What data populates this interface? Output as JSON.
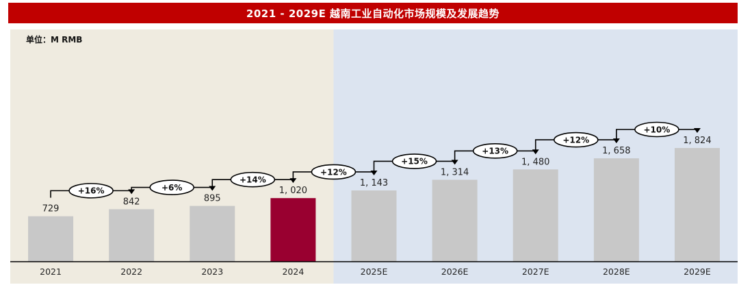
{
  "chart_data": {
    "type": "bar",
    "title": "2021 - 2029E 越南工业自动化市场规模及发展趋势",
    "unit": "单位：M RMB",
    "categories": [
      "2021",
      "2022",
      "2023",
      "2024",
      "2025E",
      "2026E",
      "2027E",
      "2028E",
      "2029E"
    ],
    "values": [
      729,
      842,
      895,
      1020,
      1143,
      1314,
      1480,
      1658,
      1824
    ],
    "value_labels": [
      "729",
      "842",
      "895",
      "1, 020",
      "1, 143",
      "1, 314",
      "1, 480",
      "1, 658",
      "1, 824"
    ],
    "growth_labels": [
      "+16%",
      "+6%",
      "+14%",
      "+12%",
      "+15%",
      "+13%",
      "+12%",
      "+10%"
    ],
    "ylim": [
      0,
      2200
    ],
    "highlight_index": 3,
    "legend": "none",
    "grid": false
  },
  "colors": {
    "title_bg": "#c00000",
    "bar": "#c8c8c8",
    "bar_highlight": "#990030",
    "actual_panel_bg": "#efebe0",
    "forecast_panel_bg": "#dce4f0"
  }
}
